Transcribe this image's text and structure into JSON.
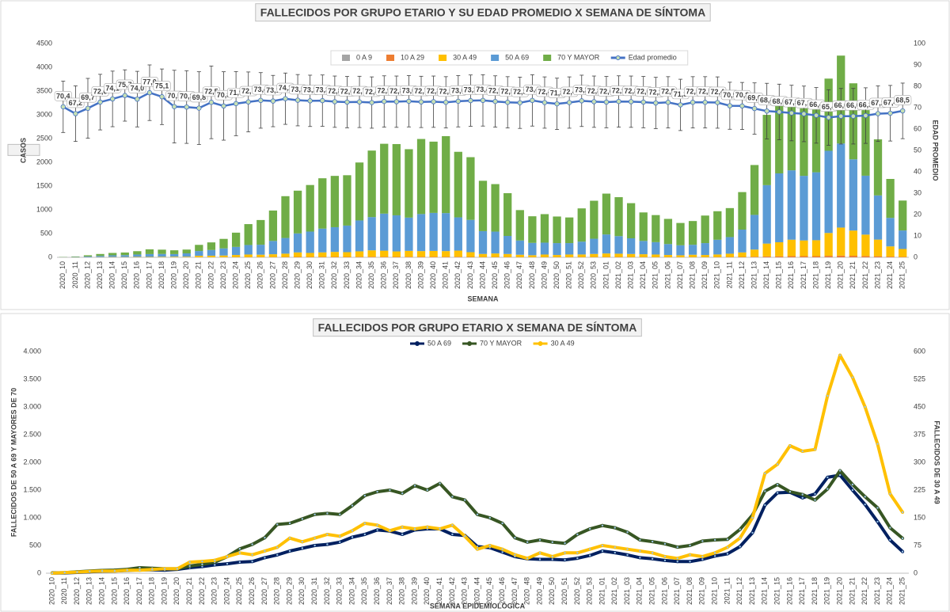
{
  "chart_data": [
    {
      "type": "bar",
      "stacked": true,
      "title": "FALLECIDOS POR GRUPO ETARIO Y SU EDAD PROMEDIO X SEMANA DE SÍNTOMA",
      "x_label": "SEMANA",
      "y_label": "CASOS",
      "y2_label": "EDAD PROMEDIO",
      "grid": false,
      "legend": "top",
      "categories": [
        "2020_10",
        "2020_11",
        "2020_12",
        "2020_13",
        "2020_14",
        "2020_15",
        "2020_16",
        "2020_17",
        "2020_18",
        "2020_19",
        "2020_20",
        "2020_21",
        "2020_22",
        "2020_23",
        "2020_24",
        "2020_25",
        "2020_26",
        "2020_27",
        "2020_28",
        "2020_29",
        "2020_30",
        "2020_31",
        "2020_32",
        "2020_33",
        "2020_34",
        "2020_35",
        "2020_36",
        "2020_37",
        "2020_38",
        "2020_39",
        "2020_40",
        "2020_41",
        "2020_42",
        "2020_43",
        "2020_44",
        "2020_45",
        "2020_46",
        "2020_47",
        "2020_48",
        "2020_49",
        "2020_50",
        "2020_51",
        "2020_52",
        "2020_53",
        "2021_01",
        "2021_02",
        "2021_03",
        "2021_04",
        "2021_05",
        "2021_06",
        "2021_07",
        "2021_08",
        "2021_09",
        "2021_10",
        "2021_11",
        "2021_12",
        "2021_13",
        "2021_14",
        "2021_15",
        "2021_16",
        "2021_17",
        "2021_18",
        "2021_19",
        "2021_20",
        "2021_21",
        "2021_22",
        "2021_23",
        "2021_24",
        "2021_25"
      ],
      "ylim": [
        0,
        4500
      ],
      "yticks": [
        0,
        500,
        1000,
        1500,
        2000,
        2500,
        3000,
        3500,
        4000,
        4500
      ],
      "y2lim": [
        0,
        100
      ],
      "y2ticks": [
        0,
        10,
        20,
        30,
        40,
        50,
        60,
        70,
        80,
        90,
        100
      ],
      "series": [
        {
          "name": "0 A 9",
          "type": "bar",
          "color": "#a5a5a5",
          "values": [
            0,
            0,
            0,
            0,
            0,
            0,
            0,
            0,
            0,
            0,
            0,
            0,
            0,
            0,
            1,
            0,
            0,
            0,
            1,
            0,
            0,
            1,
            0,
            0,
            1,
            1,
            0,
            0,
            1,
            0,
            0,
            0,
            1,
            0,
            0,
            0,
            0,
            0,
            0,
            0,
            0,
            0,
            0,
            1,
            0,
            0,
            0,
            0,
            0,
            0,
            0,
            0,
            0,
            0,
            0,
            0,
            1,
            1,
            0,
            1,
            1,
            0,
            2,
            1,
            1,
            0,
            1,
            0,
            0
          ]
        },
        {
          "name": "10 A 29",
          "type": "bar",
          "color": "#ed7d31",
          "values": [
            0,
            0,
            0,
            0,
            1,
            0,
            1,
            0,
            1,
            1,
            1,
            2,
            2,
            3,
            3,
            4,
            5,
            5,
            6,
            8,
            7,
            8,
            9,
            8,
            10,
            11,
            10,
            9,
            10,
            11,
            10,
            11,
            10,
            8,
            6,
            6,
            5,
            4,
            4,
            4,
            4,
            4,
            5,
            5,
            6,
            6,
            5,
            5,
            4,
            4,
            3,
            4,
            4,
            5,
            6,
            8,
            12,
            18,
            22,
            25,
            24,
            25,
            30,
            35,
            32,
            28,
            22,
            15,
            10
          ]
        },
        {
          "name": "30 A 49",
          "type": "bar",
          "color": "#ffc000",
          "values": [
            0,
            2,
            3,
            5,
            6,
            6,
            8,
            8,
            10,
            12,
            12,
            30,
            32,
            35,
            45,
            55,
            50,
            60,
            70,
            95,
            85,
            95,
            105,
            100,
            115,
            135,
            130,
            115,
            125,
            120,
            125,
            120,
            130,
            100,
            65,
            75,
            65,
            50,
            40,
            55,
            45,
            55,
            55,
            65,
            75,
            70,
            65,
            60,
            55,
            45,
            40,
            50,
            45,
            55,
            70,
            95,
            150,
            270,
            295,
            345,
            330,
            335,
            480,
            590,
            530,
            450,
            350,
            215,
            165
          ]
        },
        {
          "name": "50 A 69",
          "type": "bar",
          "color": "#5b9bd5",
          "values": [
            2,
            5,
            15,
            25,
            35,
            40,
            50,
            60,
            60,
            55,
            70,
            100,
            120,
            150,
            170,
            200,
            210,
            280,
            330,
            400,
            450,
            500,
            520,
            560,
            650,
            700,
            780,
            760,
            700,
            780,
            800,
            800,
            700,
            680,
            480,
            460,
            380,
            300,
            260,
            250,
            250,
            240,
            270,
            320,
            400,
            370,
            330,
            280,
            260,
            230,
            210,
            210,
            250,
            310,
            350,
            480,
            730,
            1230,
            1450,
            1460,
            1360,
            1430,
            1730,
            1770,
            1500,
            1240,
            930,
            600,
            390
          ]
        },
        {
          "name": "70 Y MAYOR",
          "type": "bar",
          "color": "#70ad47",
          "values": [
            5,
            10,
            25,
            40,
            50,
            55,
            70,
            100,
            90,
            80,
            80,
            130,
            160,
            200,
            300,
            440,
            520,
            640,
            880,
            900,
            980,
            1060,
            1080,
            1060,
            1220,
            1400,
            1470,
            1500,
            1440,
            1580,
            1500,
            1620,
            1380,
            1320,
            1060,
            1000,
            900,
            640,
            560,
            600,
            560,
            540,
            700,
            800,
            860,
            820,
            740,
            600,
            570,
            530,
            470,
            500,
            580,
            600,
            610,
            790,
            1050,
            1480,
            1600,
            1470,
            1420,
            1320,
            1520,
            1850,
            1600,
            1380,
            1180,
            820,
            630
          ]
        },
        {
          "name": "Edad promedio",
          "type": "line",
          "axis": "y2",
          "color": "#4472c4",
          "marker_color": "#c6e0b4",
          "values": [
            70.4,
            67.2,
            69.7,
            72.6,
            74.1,
            75.7,
            74.0,
            77.0,
            75.1,
            70.5,
            70.3,
            69.8,
            72.5,
            70.8,
            71.9,
            72.7,
            73.4,
            73.1,
            74.2,
            73.5,
            73.2,
            73.3,
            72.8,
            72.6,
            72.7,
            72.4,
            72.9,
            72.8,
            73.0,
            72.7,
            72.8,
            72.5,
            73.0,
            73.3,
            73.4,
            72.9,
            72.5,
            72.3,
            73.4,
            72.4,
            71.8,
            72.4,
            73.2,
            72.8,
            72.6,
            72.9,
            72.8,
            72.6,
            72.2,
            72.5,
            71.3,
            72.5,
            72.5,
            72.4,
            70.9,
            70.8,
            69.6,
            68.4,
            68.0,
            67.5,
            67.1,
            66.4,
            65.4,
            66.0,
            66.0,
            66.3,
            67.2,
            67.4,
            68.5
          ],
          "value_labels": [
            "70,4",
            "67,2",
            "69,7",
            "72,6",
            "74,1",
            "75,7",
            "74,0",
            "77,0",
            "75,1",
            "70,5",
            "70,3",
            "69,8",
            "72,5",
            "70,8",
            "71,9",
            "72,7",
            "73,4",
            "73,1",
            "74,2",
            "73,5",
            "73,2",
            "73,3",
            "72,8",
            "72,6",
            "72,7",
            "72,4",
            "72,9",
            "72,8",
            "73,0",
            "72,7",
            "72,8",
            "72,5",
            "73,0",
            "73,3",
            "73,4",
            "72,9",
            "72,5",
            "72,3",
            "73,4",
            "72,4",
            "71,8",
            "72,4",
            "73,2",
            "72,8",
            "72,6",
            "72,9",
            "72,8",
            "72,6",
            "72,2",
            "72,5",
            "71,3",
            "72,5",
            "72,5",
            "72,4",
            "70,9",
            "70,8",
            "69,6",
            "68,4",
            "68,0",
            "67,5",
            "67,1",
            "66,4",
            "65,4",
            "66,0",
            "66,0",
            "66,3",
            "67,2",
            "67,4",
            "68,5"
          ],
          "errors": [
            12,
            13,
            14,
            13,
            13,
            12,
            13,
            13,
            13,
            17,
            17,
            17,
            17,
            16,
            15,
            14,
            13,
            12,
            12,
            12,
            12,
            12,
            12,
            12,
            12,
            12,
            12,
            12,
            12,
            12,
            12,
            12,
            12,
            12,
            12,
            12,
            12,
            12,
            12,
            12,
            12,
            12,
            12,
            12,
            12,
            12,
            12,
            12,
            12,
            12,
            12,
            12,
            12,
            12,
            11,
            11,
            12,
            13,
            13,
            13,
            13,
            13,
            13,
            13,
            13,
            13,
            13,
            13,
            13
          ]
        }
      ]
    },
    {
      "type": "line",
      "title": "FALLECIDOS POR GRUPO ETARIO X SEMANA DE SÍNTOMA",
      "x_label": "SEMANA EPIDEMIOLÓGICA",
      "y_label": "FALLECIDOS DE 50 A 69 Y MAYORES DE 70",
      "y2_label": "FALLECIDOS DE 30 A 49",
      "grid": false,
      "legend": "top",
      "categories": [
        "2020_10",
        "2020_11",
        "2020_12",
        "2020_13",
        "2020_14",
        "2020_15",
        "2020_16",
        "2020_17",
        "2020_18",
        "2020_19",
        "2020_20",
        "2020_21",
        "2020_22",
        "2020_23",
        "2020_24",
        "2020_25",
        "2020_26",
        "2020_27",
        "2020_28",
        "2020_29",
        "2020_30",
        "2020_31",
        "2020_32",
        "2020_33",
        "2020_34",
        "2020_35",
        "2020_36",
        "2020_37",
        "2020_38",
        "2020_39",
        "2020_40",
        "2020_41",
        "2020_42",
        "2020_43",
        "2020_44",
        "2020_45",
        "2020_46",
        "2020_47",
        "2020_48",
        "2020_49",
        "2020_50",
        "2020_51",
        "2020_52",
        "2020_53",
        "2021_01",
        "2021_02",
        "2021_03",
        "2021_04",
        "2021_05",
        "2021_06",
        "2021_07",
        "2021_08",
        "2021_09",
        "2021_10",
        "2021_11",
        "2021_12",
        "2021_13",
        "2021_14",
        "2021_15",
        "2021_16",
        "2021_17",
        "2021_18",
        "2021_19",
        "2021_20",
        "2021_21",
        "2021_22",
        "2021_23",
        "2021_24",
        "2021_25"
      ],
      "ylim": [
        0,
        4000
      ],
      "yticks": [
        0,
        500,
        {
          "value": 1000,
          "label": "1.000"
        },
        {
          "value": 1500,
          "label": "1.500"
        },
        {
          "value": 2000,
          "label": "2.000"
        },
        {
          "value": 2500,
          "label": "2.500"
        },
        {
          "value": 3000,
          "label": "3.000"
        },
        {
          "value": 3500,
          "label": "3.500"
        },
        {
          "value": 4000,
          "label": "4.000"
        }
      ],
      "y2lim": [
        0,
        600
      ],
      "y2ticks": [
        0,
        75,
        150,
        225,
        300,
        375,
        450,
        525,
        600
      ],
      "series": [
        {
          "name": "50 A 69",
          "color": "#002060",
          "values": [
            2,
            5,
            15,
            25,
            35,
            40,
            50,
            60,
            60,
            55,
            70,
            100,
            120,
            150,
            170,
            200,
            210,
            280,
            330,
            400,
            450,
            500,
            520,
            560,
            650,
            700,
            780,
            760,
            700,
            780,
            800,
            800,
            700,
            680,
            480,
            460,
            380,
            300,
            260,
            250,
            250,
            240,
            270,
            320,
            400,
            370,
            330,
            280,
            260,
            230,
            210,
            210,
            250,
            310,
            350,
            480,
            730,
            1230,
            1450,
            1460,
            1360,
            1430,
            1730,
            1770,
            1500,
            1240,
            930,
            600,
            390
          ]
        },
        {
          "name": "70 Y MAYOR",
          "color": "#375623",
          "values": [
            5,
            10,
            25,
            40,
            50,
            55,
            70,
            100,
            90,
            80,
            80,
            130,
            160,
            200,
            300,
            440,
            520,
            640,
            880,
            900,
            980,
            1060,
            1080,
            1060,
            1220,
            1400,
            1470,
            1500,
            1440,
            1580,
            1500,
            1620,
            1380,
            1320,
            1060,
            1000,
            900,
            640,
            560,
            600,
            560,
            540,
            700,
            800,
            860,
            820,
            740,
            600,
            570,
            530,
            470,
            500,
            580,
            600,
            610,
            790,
            1050,
            1480,
            1600,
            1470,
            1420,
            1320,
            1520,
            1850,
            1600,
            1380,
            1180,
            820,
            630
          ]
        },
        {
          "name": "30 A 49",
          "color": "#ffc000",
          "axis": "y2",
          "values": [
            0,
            2,
            3,
            5,
            6,
            6,
            8,
            8,
            10,
            12,
            12,
            30,
            32,
            35,
            45,
            55,
            50,
            60,
            70,
            95,
            85,
            95,
            105,
            100,
            115,
            135,
            130,
            115,
            125,
            120,
            125,
            120,
            130,
            100,
            65,
            75,
            65,
            50,
            40,
            55,
            45,
            55,
            55,
            65,
            75,
            70,
            65,
            60,
            55,
            45,
            40,
            50,
            45,
            55,
            70,
            95,
            150,
            270,
            295,
            345,
            330,
            335,
            480,
            590,
            530,
            450,
            350,
            215,
            165
          ]
        }
      ]
    }
  ]
}
